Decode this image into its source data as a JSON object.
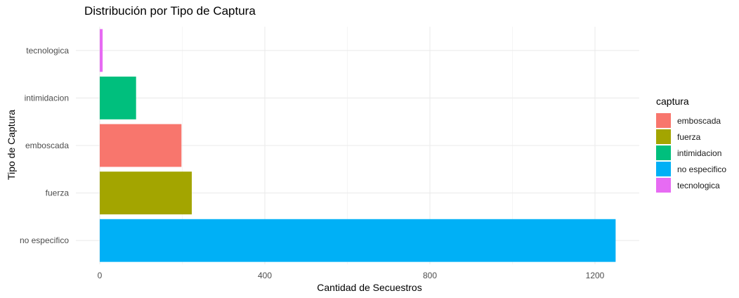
{
  "chart_data": {
    "type": "bar",
    "orientation": "horizontal",
    "title": "Distribución por Tipo de Captura",
    "xlabel": "Cantidad de Secuestros",
    "ylabel": "Tipo de Captura",
    "xlim": [
      0,
      1310
    ],
    "xticks": [
      0,
      400,
      800,
      1200
    ],
    "grid": true,
    "legend_title": "captura",
    "legend_position": "right",
    "categories": [
      "no especifico",
      "fuerza",
      "emboscada",
      "intimidacion",
      "tecnologica"
    ],
    "values": [
      1250,
      223,
      198,
      88,
      7
    ],
    "colors": {
      "emboscada": "#F8766D",
      "fuerza": "#A3A500",
      "intimidacion": "#00BF7D",
      "no especifico": "#00B0F6",
      "tecnologica": "#E76BF3"
    },
    "legend": [
      "emboscada",
      "fuerza",
      "intimidacion",
      "no especifico",
      "tecnologica"
    ]
  }
}
